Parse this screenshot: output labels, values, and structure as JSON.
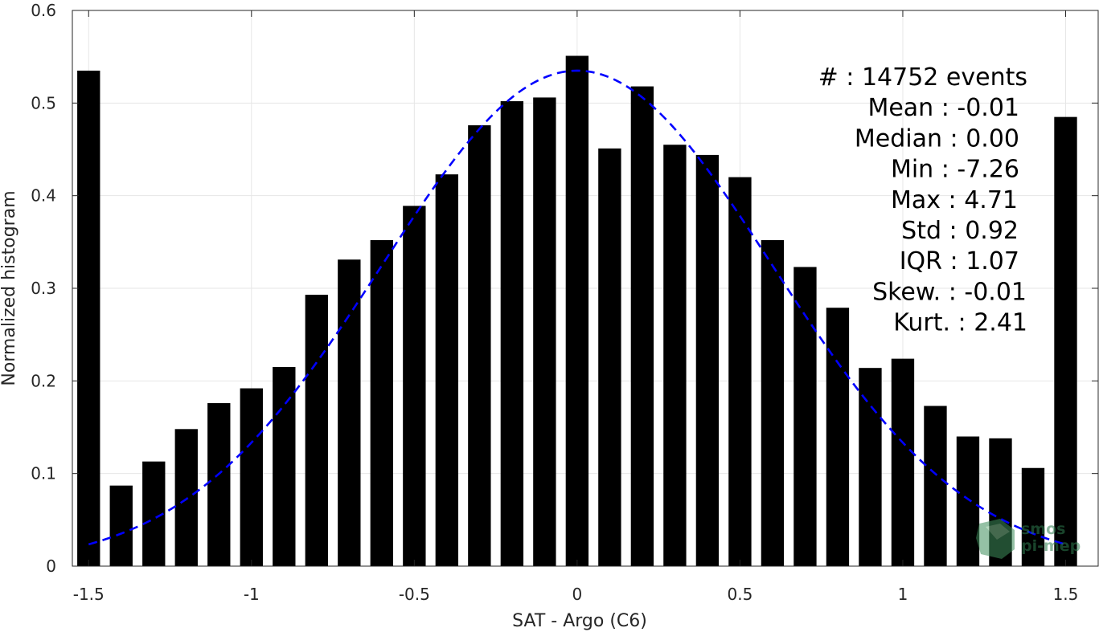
{
  "chart_data": {
    "type": "bar",
    "xlabel": "SAT - Argo (C6)",
    "ylabel": "Normalized histogram",
    "xlim": [
      -1.55,
      1.6
    ],
    "ylim": [
      0,
      0.6
    ],
    "grid": true,
    "x": [
      -1.5,
      -1.4,
      -1.3,
      -1.2,
      -1.1,
      -1.0,
      -0.9,
      -0.8,
      -0.7,
      -0.6,
      -0.5,
      -0.4,
      -0.3,
      -0.2,
      -0.1,
      0.0,
      0.1,
      0.2,
      0.3,
      0.4,
      0.5,
      0.6,
      0.7,
      0.8,
      0.9,
      1.0,
      1.1,
      1.2,
      1.3,
      1.4,
      1.5
    ],
    "values": [
      0.535,
      0.087,
      0.113,
      0.148,
      0.176,
      0.192,
      0.215,
      0.293,
      0.331,
      0.352,
      0.389,
      0.423,
      0.476,
      0.502,
      0.506,
      0.551,
      0.451,
      0.518,
      0.455,
      0.444,
      0.42,
      0.352,
      0.323,
      0.279,
      0.214,
      0.224,
      0.173,
      0.14,
      0.138,
      0.106,
      0.485
    ],
    "bar_color": "#000000",
    "xticks": [
      {
        "value": -1.5,
        "label": "-1.5"
      },
      {
        "value": -1.0,
        "label": "-1"
      },
      {
        "value": -0.5,
        "label": "-0.5"
      },
      {
        "value": 0.0,
        "label": "0"
      },
      {
        "value": 0.5,
        "label": "0.5"
      },
      {
        "value": 1.0,
        "label": "1"
      },
      {
        "value": 1.5,
        "label": "1.5"
      }
    ],
    "yticks": [
      {
        "value": 0.0,
        "label": "0"
      },
      {
        "value": 0.1,
        "label": "0.1"
      },
      {
        "value": 0.2,
        "label": "0.2"
      },
      {
        "value": 0.3,
        "label": "0.3"
      },
      {
        "value": 0.4,
        "label": "0.4"
      },
      {
        "value": 0.5,
        "label": "0.5"
      },
      {
        "value": 0.6,
        "label": "0.6"
      }
    ],
    "fit_curve": {
      "type": "gaussian",
      "mean": 0.0,
      "peak": 0.535,
      "sigma": 0.6,
      "x_range": [
        -1.5,
        1.5
      ],
      "color": "#0000ff",
      "style": "dashed"
    },
    "annotations": [
      "#  : 14752 events",
      "Mean : -0.01",
      "Median : 0.00",
      "Min : -7.26",
      "Max : 4.71",
      "Std : 0.92",
      "IQR : 1.07",
      "Skew. : -0.01",
      "Kurt. : 2.41"
    ]
  },
  "watermark": {
    "line1": "smos",
    "line2": "pi-mep",
    "color": "#2e7d4f"
  }
}
